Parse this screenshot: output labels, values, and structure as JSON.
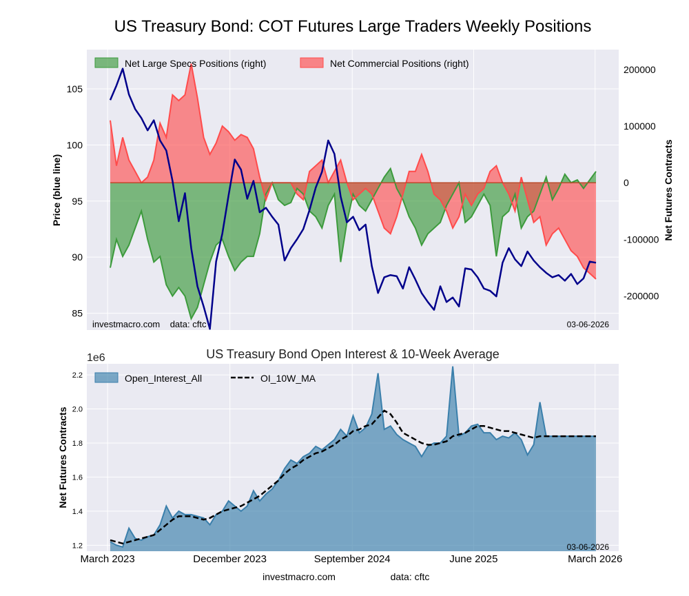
{
  "header": {
    "title": "US Treasury Bond: COT Futures Large Traders Weekly Positions"
  },
  "footer": {
    "site": "investmacro.com",
    "source": "data: cftc"
  },
  "colors": {
    "specs": "#3c9a3c",
    "commercial": "#ff4b4b",
    "price": "#00008b",
    "oi": "#3a7fab",
    "ma": "#000000",
    "grid": "#ffffff",
    "panel": "#eaeaf2"
  },
  "chart_data": [
    {
      "type": "line",
      "title": "",
      "ylabel_left": "Price (blue line)",
      "ylabel_right": "Net Futures Contracts",
      "ylim_left": [
        83.5,
        108.5
      ],
      "ylim_right": [
        -260000,
        235000
      ],
      "yticks_left": [
        "85",
        "90",
        "95",
        "100",
        "105"
      ],
      "yticks_right": [
        "200000",
        "100000",
        "0",
        "-100000",
        "-200000"
      ],
      "legend": [
        "Net Large Specs Positions (right)",
        "Net Commercial Positions (right)"
      ],
      "legend_position": "top-left",
      "watermark": "investmacro.com    data: cftc",
      "date_label": "03-06-2026",
      "x_range": [
        "2023-03-07",
        "2026-03-03"
      ],
      "price": {
        "x": [
          "2023-03-07",
          "2023-03-21",
          "2023-04-04",
          "2023-04-18",
          "2023-05-02",
          "2023-05-16",
          "2023-05-30",
          "2023-06-13",
          "2023-06-27",
          "2023-07-11",
          "2023-07-25",
          "2023-08-08",
          "2023-08-22",
          "2023-09-05",
          "2023-09-19",
          "2023-10-03",
          "2023-10-17",
          "2023-10-31",
          "2023-11-14",
          "2023-11-28",
          "2023-12-12",
          "2023-12-26",
          "2024-01-09",
          "2024-01-23",
          "2024-02-06",
          "2024-02-20",
          "2024-03-05",
          "2024-03-19",
          "2024-04-02",
          "2024-04-16",
          "2024-04-30",
          "2024-05-14",
          "2024-05-28",
          "2024-06-11",
          "2024-06-25",
          "2024-07-09",
          "2024-07-23",
          "2024-08-06",
          "2024-08-20",
          "2024-09-03",
          "2024-09-17",
          "2024-10-01",
          "2024-10-15",
          "2024-10-29",
          "2024-11-12",
          "2024-11-26",
          "2024-12-10",
          "2024-12-24",
          "2025-01-07",
          "2025-01-21",
          "2025-02-04",
          "2025-02-18",
          "2025-03-04",
          "2025-03-18",
          "2025-04-01",
          "2025-04-15",
          "2025-04-29",
          "2025-05-13",
          "2025-05-27",
          "2025-06-10",
          "2025-06-24",
          "2025-07-08",
          "2025-07-22",
          "2025-08-05",
          "2025-08-19",
          "2025-09-02",
          "2025-09-16",
          "2025-09-30",
          "2025-10-14",
          "2025-10-28",
          "2025-11-11",
          "2025-11-25",
          "2025-12-09",
          "2025-12-23",
          "2026-01-06",
          "2026-01-20",
          "2026-02-03",
          "2026-02-17",
          "2026-03-03"
        ],
        "values": [
          104,
          105.3,
          106.8,
          104.5,
          103.2,
          102.4,
          101.3,
          102.2,
          100.4,
          99.5,
          96.8,
          93.2,
          95.7,
          90.8,
          87.4,
          85.6,
          83.6,
          89.6,
          92.1,
          95.5,
          98.7,
          97.8,
          95.2,
          96.8,
          94,
          94.4,
          93.6,
          92.9,
          89.7,
          90.8,
          91.6,
          92.5,
          94.2,
          96.2,
          97.6,
          100.4,
          99.2,
          95.4,
          93.1,
          93.6,
          92.4,
          92.9,
          89.2,
          86.8,
          88.2,
          88.4,
          88.3,
          87.2,
          89.1,
          88,
          86.8,
          86,
          85.3,
          87.4,
          86,
          86.4,
          85.6,
          89,
          88.9,
          88.2,
          87.2,
          87,
          86.5,
          89.5,
          90.8,
          89.8,
          89.2,
          90.5,
          89.7,
          89.1,
          88.6,
          88.2,
          88.4,
          87.9,
          88.5,
          87.6,
          88.1,
          89.6,
          89.5
        ]
      },
      "net_specs": {
        "x": [
          "2023-03-07",
          "2023-03-21",
          "2023-04-04",
          "2023-04-18",
          "2023-05-02",
          "2023-05-16",
          "2023-05-30",
          "2023-06-13",
          "2023-06-27",
          "2023-07-11",
          "2023-07-25",
          "2023-08-08",
          "2023-08-22",
          "2023-09-05",
          "2023-09-19",
          "2023-10-03",
          "2023-10-17",
          "2023-10-31",
          "2023-11-14",
          "2023-11-28",
          "2023-12-12",
          "2023-12-26",
          "2024-01-09",
          "2024-01-23",
          "2024-02-06",
          "2024-02-20",
          "2024-03-05",
          "2024-03-19",
          "2024-04-02",
          "2024-04-16",
          "2024-04-30",
          "2024-05-14",
          "2024-05-28",
          "2024-06-11",
          "2024-06-25",
          "2024-07-09",
          "2024-07-23",
          "2024-08-06",
          "2024-08-20",
          "2024-09-03",
          "2024-09-17",
          "2024-10-01",
          "2024-10-15",
          "2024-10-29",
          "2024-11-12",
          "2024-11-26",
          "2024-12-10",
          "2024-12-24",
          "2025-01-07",
          "2025-01-21",
          "2025-02-04",
          "2025-02-18",
          "2025-03-04",
          "2025-03-18",
          "2025-04-01",
          "2025-04-15",
          "2025-04-29",
          "2025-05-13",
          "2025-05-27",
          "2025-06-10",
          "2025-06-24",
          "2025-07-08",
          "2025-07-22",
          "2025-08-05",
          "2025-08-19",
          "2025-09-02",
          "2025-09-16",
          "2025-09-30",
          "2025-10-14",
          "2025-10-28",
          "2025-11-11",
          "2025-11-25",
          "2025-12-09",
          "2025-12-23",
          "2026-01-06",
          "2026-01-20",
          "2026-02-03",
          "2026-02-17",
          "2026-03-03"
        ],
        "values": [
          -150000,
          -100000,
          -130000,
          -110000,
          -80000,
          -50000,
          -100000,
          -140000,
          -130000,
          -180000,
          -200000,
          -185000,
          -200000,
          -240000,
          -220000,
          -180000,
          -140000,
          -110000,
          -100000,
          -130000,
          -155000,
          -140000,
          -130000,
          -130000,
          -90000,
          -20000,
          0,
          -30000,
          -40000,
          -35000,
          -10000,
          -20000,
          -50000,
          -60000,
          -80000,
          -40000,
          -20000,
          -140000,
          -70000,
          -20000,
          -40000,
          -50000,
          -30000,
          -10000,
          10000,
          25000,
          -10000,
          -30000,
          -60000,
          -80000,
          -110000,
          -90000,
          -80000,
          -70000,
          -40000,
          -20000,
          0,
          -70000,
          -60000,
          -40000,
          -20000,
          -40000,
          -130000,
          -60000,
          -50000,
          -20000,
          -80000,
          -60000,
          -50000,
          -20000,
          10000,
          -30000,
          -10000,
          15000,
          0,
          5000,
          -10000,
          5000,
          20000
        ]
      },
      "net_commercial": {
        "x": [
          "2023-03-07",
          "2023-03-21",
          "2023-04-04",
          "2023-04-18",
          "2023-05-02",
          "2023-05-16",
          "2023-05-30",
          "2023-06-13",
          "2023-06-27",
          "2023-07-11",
          "2023-07-25",
          "2023-08-08",
          "2023-08-22",
          "2023-09-05",
          "2023-09-19",
          "2023-10-03",
          "2023-10-17",
          "2023-10-31",
          "2023-11-14",
          "2023-11-28",
          "2023-12-12",
          "2023-12-26",
          "2024-01-09",
          "2024-01-23",
          "2024-02-06",
          "2024-02-20",
          "2024-03-05",
          "2024-03-19",
          "2024-04-02",
          "2024-04-16",
          "2024-04-30",
          "2024-05-14",
          "2024-05-28",
          "2024-06-11",
          "2024-06-25",
          "2024-07-09",
          "2024-07-23",
          "2024-08-06",
          "2024-08-20",
          "2024-09-03",
          "2024-09-17",
          "2024-10-01",
          "2024-10-15",
          "2024-10-29",
          "2024-11-12",
          "2024-11-26",
          "2024-12-10",
          "2024-12-24",
          "2025-01-07",
          "2025-01-21",
          "2025-02-04",
          "2025-02-18",
          "2025-03-04",
          "2025-03-18",
          "2025-04-01",
          "2025-04-15",
          "2025-04-29",
          "2025-05-13",
          "2025-05-27",
          "2025-06-10",
          "2025-06-24",
          "2025-07-08",
          "2025-07-22",
          "2025-08-05",
          "2025-08-19",
          "2025-09-02",
          "2025-09-16",
          "2025-09-30",
          "2025-10-14",
          "2025-10-28",
          "2025-11-11",
          "2025-11-25",
          "2025-12-09",
          "2025-12-23",
          "2026-01-06",
          "2026-01-20",
          "2026-02-03",
          "2026-02-17",
          "2026-03-03"
        ],
        "values": [
          110000,
          30000,
          80000,
          40000,
          20000,
          0,
          10000,
          40000,
          105000,
          80000,
          155000,
          145000,
          155000,
          210000,
          150000,
          80000,
          50000,
          70000,
          100000,
          90000,
          75000,
          85000,
          80000,
          60000,
          10000,
          -30000,
          0,
          0,
          0,
          0,
          -20000,
          -30000,
          20000,
          30000,
          40000,
          0,
          20000,
          40000,
          0,
          -30000,
          -20000,
          -10000,
          -20000,
          -50000,
          -80000,
          -90000,
          -60000,
          -20000,
          20000,
          20000,
          50000,
          20000,
          -20000,
          -30000,
          -50000,
          -80000,
          -60000,
          -20000,
          -40000,
          -20000,
          -10000,
          20000,
          30000,
          0,
          -20000,
          -50000,
          10000,
          -30000,
          -70000,
          -60000,
          -110000,
          -90000,
          -80000,
          -100000,
          -120000,
          -130000,
          -150000,
          -160000,
          -170000
        ]
      }
    },
    {
      "type": "area",
      "title": "US Treasury Bond Open Interest & 10-Week Average",
      "ylabel": "Net Futures Contracts",
      "exponent": "1e6",
      "ylim": [
        1.165,
        2.265
      ],
      "yticks": [
        "1.2",
        "1.4",
        "1.6",
        "1.8",
        "2.0",
        "2.2"
      ],
      "legend": [
        "Open_Interest_All",
        "OI_10W_MA"
      ],
      "legend_position": "top-left",
      "date_label": "03-06-2026",
      "xticks": [
        "March 2023",
        "December 2023",
        "September 2024",
        "June 2025",
        "March 2026"
      ],
      "xticks_dates": [
        "2023-03-01",
        "2023-12-01",
        "2024-09-01",
        "2025-06-01",
        "2026-03-01"
      ],
      "x_range": [
        "2023-03-07",
        "2026-03-03"
      ],
      "open_interest": {
        "x": [
          "2023-03-07",
          "2023-03-21",
          "2023-04-04",
          "2023-04-18",
          "2023-05-02",
          "2023-05-16",
          "2023-05-30",
          "2023-06-13",
          "2023-06-27",
          "2023-07-11",
          "2023-07-25",
          "2023-08-08",
          "2023-08-22",
          "2023-09-05",
          "2023-09-19",
          "2023-10-03",
          "2023-10-17",
          "2023-10-31",
          "2023-11-14",
          "2023-11-28",
          "2023-12-12",
          "2023-12-26",
          "2024-01-09",
          "2024-01-23",
          "2024-02-06",
          "2024-02-20",
          "2024-03-05",
          "2024-03-19",
          "2024-04-02",
          "2024-04-16",
          "2024-04-30",
          "2024-05-14",
          "2024-05-28",
          "2024-06-11",
          "2024-06-25",
          "2024-07-09",
          "2024-07-23",
          "2024-08-06",
          "2024-08-20",
          "2024-09-03",
          "2024-09-17",
          "2024-10-01",
          "2024-10-15",
          "2024-10-29",
          "2024-11-12",
          "2024-11-26",
          "2024-12-10",
          "2024-12-24",
          "2025-01-07",
          "2025-01-21",
          "2025-02-04",
          "2025-02-18",
          "2025-03-04",
          "2025-03-18",
          "2025-04-01",
          "2025-04-15",
          "2025-04-29",
          "2025-05-13",
          "2025-05-27",
          "2025-06-10",
          "2025-06-24",
          "2025-07-08",
          "2025-07-22",
          "2025-08-05",
          "2025-08-19",
          "2025-09-02",
          "2025-09-16",
          "2025-09-30",
          "2025-10-14",
          "2025-10-28",
          "2025-11-11",
          "2025-11-25",
          "2025-12-09",
          "2025-12-23",
          "2026-01-06",
          "2026-01-20",
          "2026-02-03",
          "2026-02-17",
          "2026-03-03"
        ],
        "values": [
          1.22,
          1.2,
          1.19,
          1.3,
          1.24,
          1.23,
          1.25,
          1.26,
          1.32,
          1.43,
          1.36,
          1.4,
          1.38,
          1.38,
          1.37,
          1.36,
          1.32,
          1.38,
          1.4,
          1.46,
          1.43,
          1.4,
          1.43,
          1.52,
          1.46,
          1.5,
          1.53,
          1.58,
          1.65,
          1.7,
          1.68,
          1.72,
          1.74,
          1.78,
          1.76,
          1.79,
          1.82,
          1.88,
          1.84,
          1.96,
          1.86,
          1.89,
          1.97,
          2.21,
          1.88,
          1.9,
          1.85,
          1.82,
          1.8,
          1.78,
          1.72,
          1.78,
          1.8,
          1.8,
          1.84,
          2.25,
          1.84,
          1.86,
          1.9,
          1.91,
          1.86,
          1.86,
          1.82,
          1.84,
          1.83,
          1.86,
          1.82,
          1.73,
          1.79,
          2.04,
          1.84,
          1.84,
          1.84,
          1.84,
          1.84,
          1.84,
          1.84,
          1.84,
          1.84
        ]
      },
      "oi_10w_ma": {
        "x": [
          "2023-03-07",
          "2023-03-21",
          "2023-04-04",
          "2023-04-18",
          "2023-05-02",
          "2023-05-16",
          "2023-05-30",
          "2023-06-13",
          "2023-06-27",
          "2023-07-11",
          "2023-07-25",
          "2023-08-08",
          "2023-08-22",
          "2023-09-05",
          "2023-09-19",
          "2023-10-03",
          "2023-10-17",
          "2023-10-31",
          "2023-11-14",
          "2023-11-28",
          "2023-12-12",
          "2023-12-26",
          "2024-01-09",
          "2024-01-23",
          "2024-02-06",
          "2024-02-20",
          "2024-03-05",
          "2024-03-19",
          "2024-04-02",
          "2024-04-16",
          "2024-04-30",
          "2024-05-14",
          "2024-05-28",
          "2024-06-11",
          "2024-06-25",
          "2024-07-09",
          "2024-07-23",
          "2024-08-06",
          "2024-08-20",
          "2024-09-03",
          "2024-09-17",
          "2024-10-01",
          "2024-10-15",
          "2024-10-29",
          "2024-11-12",
          "2024-11-26",
          "2024-12-10",
          "2024-12-24",
          "2025-01-07",
          "2025-01-21",
          "2025-02-04",
          "2025-02-18",
          "2025-03-04",
          "2025-03-18",
          "2025-04-01",
          "2025-04-15",
          "2025-04-29",
          "2025-05-13",
          "2025-05-27",
          "2025-06-10",
          "2025-06-24",
          "2025-07-08",
          "2025-07-22",
          "2025-08-05",
          "2025-08-19",
          "2025-09-02",
          "2025-09-16",
          "2025-09-30",
          "2025-10-14",
          "2025-10-28",
          "2025-11-11",
          "2025-11-25",
          "2025-12-09",
          "2025-12-23",
          "2026-01-06",
          "2026-01-20",
          "2026-02-03",
          "2026-02-17",
          "2026-03-03"
        ],
        "values": [
          1.23,
          1.22,
          1.21,
          1.22,
          1.23,
          1.24,
          1.25,
          1.26,
          1.29,
          1.32,
          1.35,
          1.37,
          1.37,
          1.37,
          1.36,
          1.35,
          1.36,
          1.38,
          1.4,
          1.41,
          1.42,
          1.43,
          1.45,
          1.47,
          1.49,
          1.52,
          1.55,
          1.58,
          1.62,
          1.65,
          1.67,
          1.7,
          1.72,
          1.74,
          1.75,
          1.77,
          1.79,
          1.82,
          1.84,
          1.87,
          1.88,
          1.9,
          1.91,
          1.95,
          1.99,
          1.97,
          1.92,
          1.86,
          1.84,
          1.82,
          1.8,
          1.79,
          1.79,
          1.8,
          1.81,
          1.84,
          1.85,
          1.86,
          1.88,
          1.9,
          1.9,
          1.89,
          1.88,
          1.87,
          1.87,
          1.86,
          1.85,
          1.84,
          1.83,
          1.84,
          1.84,
          1.84,
          1.84,
          1.84,
          1.84,
          1.84,
          1.84,
          1.84,
          1.84
        ]
      }
    }
  ]
}
